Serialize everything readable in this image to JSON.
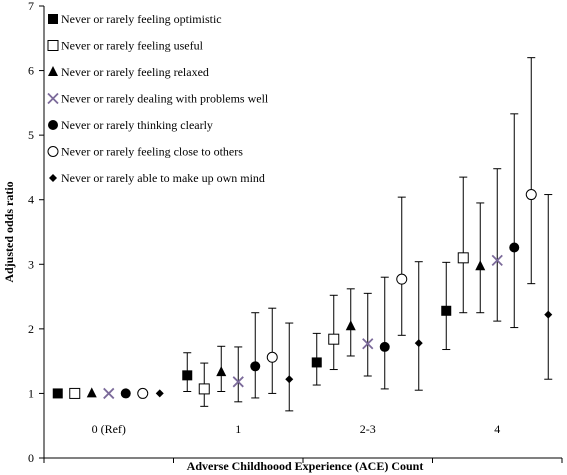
{
  "chart_data": {
    "type": "scatter",
    "xlabel": "Adverse Childhoood Experience (ACE) Count",
    "ylabel": "Adjusted odds ratio",
    "ylim": [
      0,
      7
    ],
    "yticks": [
      "0",
      "1",
      "2",
      "3",
      "4",
      "5",
      "6",
      "7"
    ],
    "categories": [
      "0 (Ref)",
      "1",
      "2-3",
      "4"
    ],
    "grid": false,
    "error_bars": true,
    "legend_position": "top-left",
    "series": [
      {
        "name": "Never or rarely feeling optimistic",
        "marker": "filled-square",
        "values": [
          1.0,
          1.28,
          1.48,
          2.28
        ],
        "lower": [
          1.0,
          1.03,
          1.13,
          1.68
        ],
        "upper": [
          1.0,
          1.63,
          1.93,
          3.03
        ]
      },
      {
        "name": "Never or rarely feeling useful",
        "marker": "open-square",
        "values": [
          1.0,
          1.07,
          1.84,
          3.1
        ],
        "lower": [
          1.0,
          0.8,
          1.37,
          2.25
        ],
        "upper": [
          1.0,
          1.47,
          2.52,
          4.35
        ]
      },
      {
        "name": "Never or rarely feeling relaxed",
        "marker": "filled-triangle",
        "values": [
          1.0,
          1.33,
          2.04,
          2.97
        ],
        "lower": [
          1.0,
          1.03,
          1.58,
          2.25
        ],
        "upper": [
          1.0,
          1.73,
          2.62,
          3.95
        ]
      },
      {
        "name": "Never or rarely dealing with problems well",
        "marker": "x",
        "values": [
          1.0,
          1.18,
          1.77,
          3.06
        ],
        "lower": [
          1.0,
          0.87,
          1.27,
          2.12
        ],
        "upper": [
          1.0,
          1.72,
          2.55,
          4.48
        ]
      },
      {
        "name": "Never or rarely thinking clearly",
        "marker": "filled-circle",
        "values": [
          1.0,
          1.42,
          1.72,
          3.26
        ],
        "lower": [
          1.0,
          0.93,
          1.07,
          2.02
        ],
        "upper": [
          1.0,
          2.25,
          2.8,
          5.33
        ]
      },
      {
        "name": "Never or rarely feeling close to others",
        "marker": "open-circle",
        "values": [
          1.0,
          1.56,
          2.77,
          4.08
        ],
        "lower": [
          1.0,
          1.0,
          1.9,
          2.7
        ],
        "upper": [
          1.0,
          2.32,
          4.04,
          6.2
        ]
      },
      {
        "name": "Never or rarely able to make up own mind",
        "marker": "filled-diamond",
        "values": [
          1.0,
          1.22,
          1.78,
          2.22
        ],
        "lower": [
          1.0,
          0.73,
          1.05,
          1.22
        ],
        "upper": [
          1.0,
          2.09,
          3.04,
          4.08
        ]
      }
    ]
  }
}
